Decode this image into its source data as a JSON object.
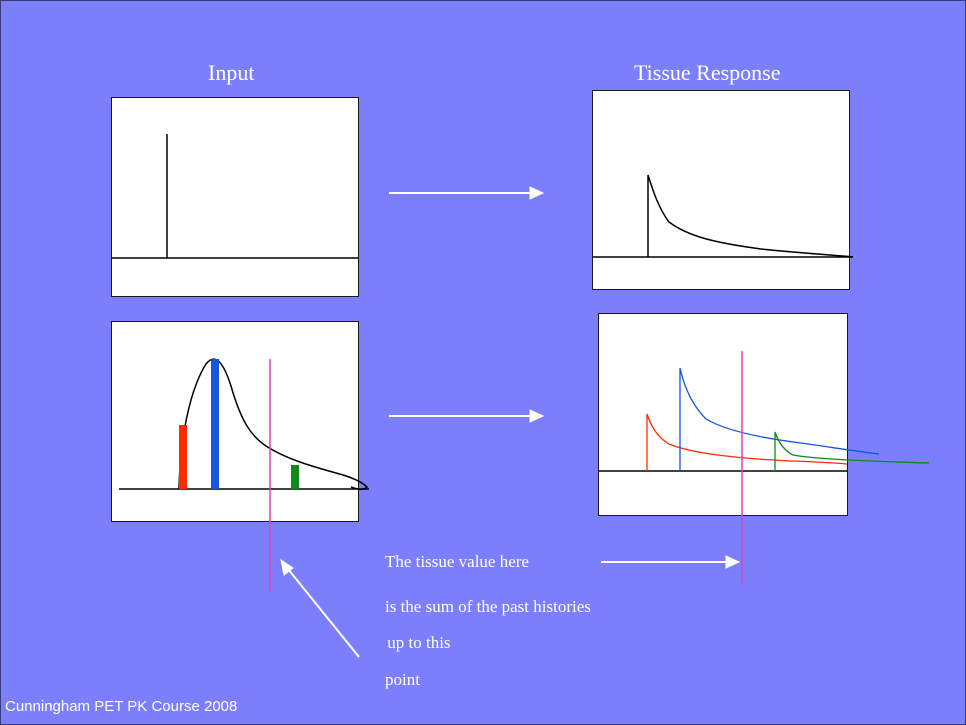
{
  "headings": {
    "input": "Input",
    "tissue_response": "Tissue Response"
  },
  "caption": {
    "line1": "The tissue value here",
    "line2": "is the sum of the past histories",
    "line3": " up to this",
    "line4": "point"
  },
  "footer": "Cunningham PET PK Course 2008",
  "colors": {
    "background": "#7b7ffc",
    "panel": "#ffffff",
    "arrow": "#ffffff",
    "time_marker": "#e040c0",
    "bar_red": "#ff2a00",
    "bar_blue": "#1655e0",
    "bar_green": "#0f8a1a"
  }
}
